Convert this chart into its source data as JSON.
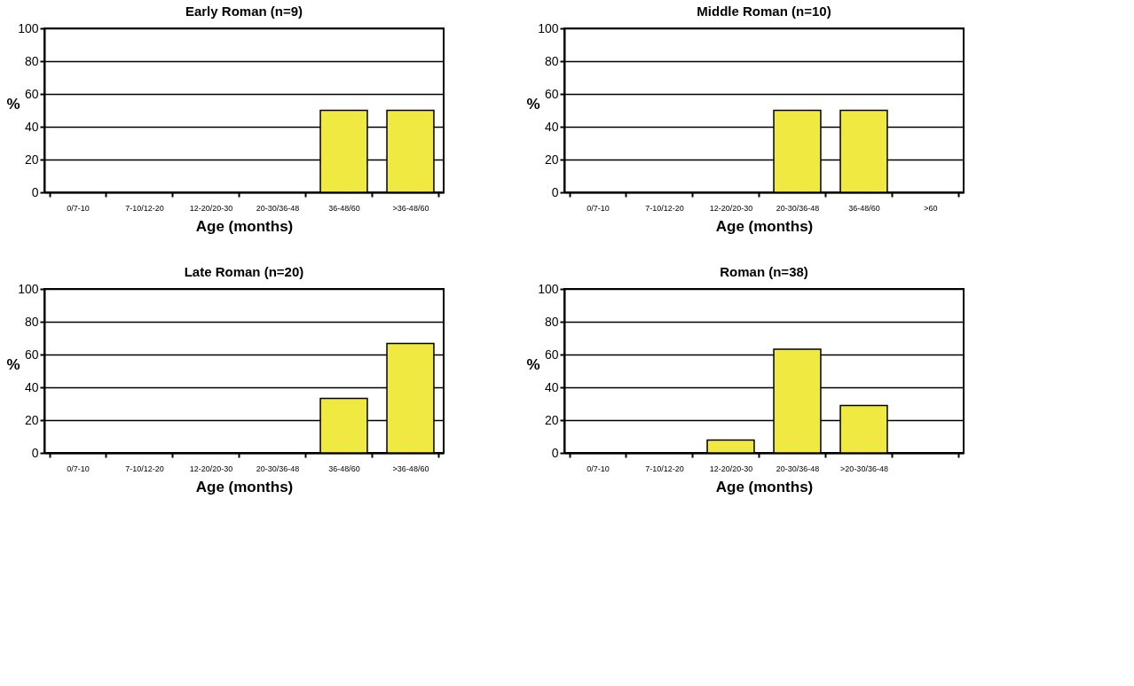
{
  "chart_data": [
    {
      "type": "bar",
      "title": "Early Roman (n=9)",
      "xlabel": "Age (months)",
      "ylabel": "%",
      "categories": [
        "0/7-10",
        "7-10/12-20",
        "12-20/20-30",
        "20-30/36-48",
        "36-48/60",
        ">36-48/60"
      ],
      "values": [
        0,
        0,
        0,
        0,
        50,
        50
      ],
      "color": "#f0e942",
      "ylim": [
        0,
        100
      ],
      "yticks": [
        0,
        20,
        40,
        60,
        80,
        100
      ],
      "grid": "y"
    },
    {
      "type": "bar",
      "title": "Middle Roman (n=10)",
      "xlabel": "Age (months)",
      "ylabel": "%",
      "categories": [
        "0/7-10",
        "7-10/12-20",
        "12-20/20-30",
        "20-30/36-48",
        "36-48/60",
        ">60"
      ],
      "values": [
        0,
        0,
        0,
        50,
        50,
        0
      ],
      "color": "#f0e942",
      "ylim": [
        0,
        100
      ],
      "yticks": [
        0,
        20,
        40,
        60,
        80,
        100
      ],
      "grid": "y"
    },
    {
      "type": "bar",
      "title": "Late Roman (n=20)",
      "xlabel": "Age (months)",
      "ylabel": "%",
      "categories": [
        "0/7-10",
        "7-10/12-20",
        "12-20/20-30",
        "20-30/36-48",
        "36-48/60",
        ">36-48/60"
      ],
      "values": [
        0,
        0,
        0,
        0,
        33.3,
        66.7
      ],
      "color": "#f0e942",
      "ylim": [
        0,
        100
      ],
      "yticks": [
        0,
        20,
        40,
        60,
        80,
        100
      ],
      "grid": "y"
    },
    {
      "type": "bar",
      "title": "Roman (n=38)",
      "xlabel": "Age (months)",
      "ylabel": "%",
      "categories": [
        "0/7-10",
        "7-10/12-20",
        "12-20/20-30",
        "20-30/36-48",
        ">20-30/36-48",
        null
      ],
      "values": [
        0,
        0,
        7.9,
        63.2,
        28.9,
        0
      ],
      "color": "#f0e942",
      "ylim": [
        0,
        100
      ],
      "yticks": [
        0,
        20,
        40,
        60,
        80,
        100
      ],
      "grid": "y"
    }
  ]
}
